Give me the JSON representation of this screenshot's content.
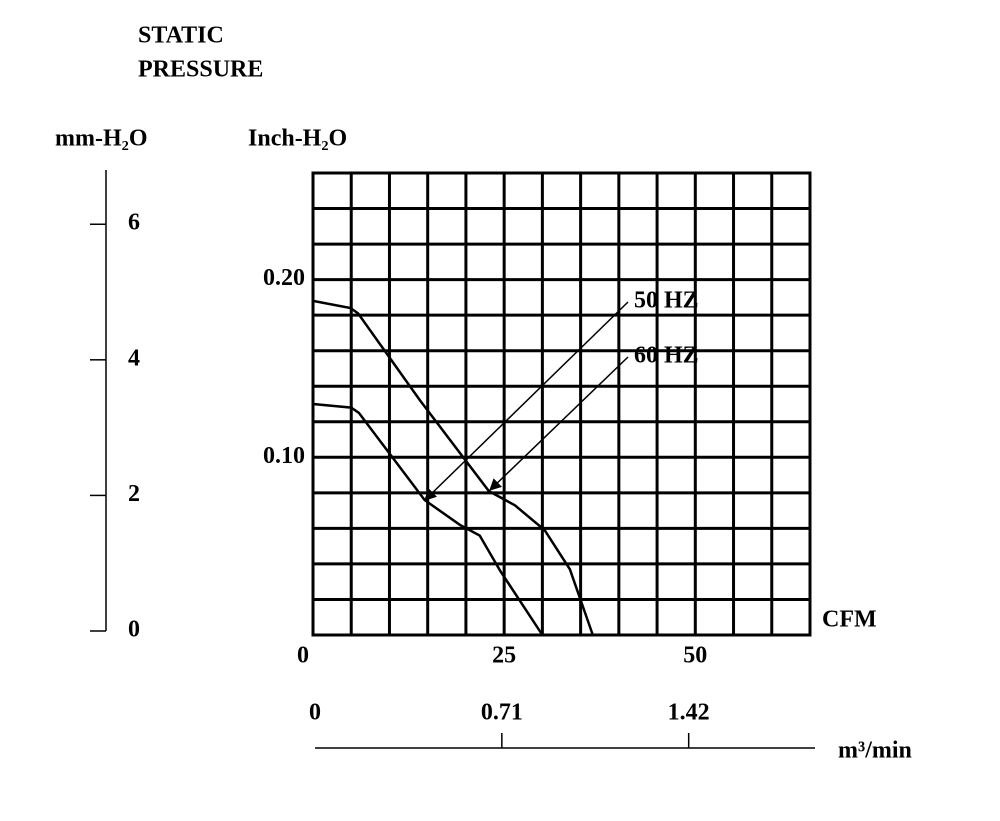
{
  "chart_data": {
    "type": "line",
    "title_lines": [
      "STATIC",
      "PRESSURE"
    ],
    "y_label": "Inch-H₂O",
    "y2_label": "mm-H₂O",
    "x_label": "CFM",
    "x2_label": "m³/min",
    "series": [
      {
        "name": "50 HZ",
        "color": "#000000",
        "x": [
          0,
          5,
          6,
          14.6,
          19.2,
          21.8,
          24.5,
          30
        ],
        "values": [
          0.13,
          0.128,
          0.125,
          0.076,
          0.062,
          0.056,
          0.036,
          0
        ]
      },
      {
        "name": "60 HZ",
        "color": "#000000",
        "x": [
          0,
          4.9,
          5.9,
          14,
          23,
          26.4,
          30.3,
          33.6,
          36.6
        ],
        "values": [
          0.188,
          0.184,
          0.181,
          0.132,
          0.081,
          0.073,
          0.059,
          0.037,
          0
        ]
      }
    ],
    "xlim": [
      0,
      65
    ],
    "xticks": [
      0,
      25,
      50
    ],
    "ylim": [
      0,
      0.26
    ],
    "yticks": [
      {
        "value": 0.1,
        "label": "0.10"
      },
      {
        "value": 0.2,
        "label": "0.20"
      }
    ],
    "y2lim": [
      0,
      6.8
    ],
    "y2ticks": [
      0,
      2,
      4,
      6
    ],
    "x2lim": [
      0,
      1.9
    ],
    "x2ticks": [
      0,
      0.71,
      1.42
    ],
    "xgrid": [
      0,
      5,
      10,
      15,
      20,
      25,
      30,
      35,
      40,
      45,
      50,
      55,
      60,
      65
    ],
    "ygrid": [
      0,
      0.02,
      0.04,
      0.06,
      0.08,
      0.1,
      0.12,
      0.14,
      0.16,
      0.18,
      0.2,
      0.22,
      0.24,
      0.26
    ]
  }
}
